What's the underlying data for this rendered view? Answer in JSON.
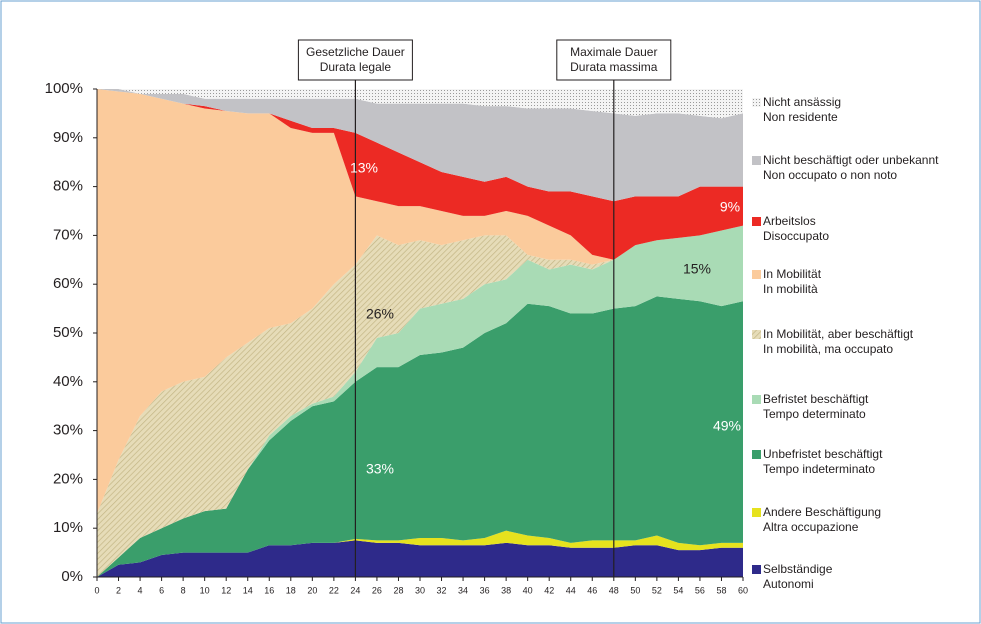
{
  "chart_data": {
    "type": "stacked-area",
    "x": [
      0,
      2,
      4,
      6,
      8,
      10,
      12,
      14,
      16,
      18,
      20,
      22,
      24,
      26,
      28,
      30,
      32,
      34,
      36,
      38,
      40,
      42,
      44,
      46,
      48,
      50,
      52,
      54,
      56,
      58,
      60
    ],
    "xlim": [
      0,
      60
    ],
    "xticks": [
      0,
      2,
      4,
      6,
      8,
      10,
      12,
      14,
      16,
      18,
      20,
      22,
      24,
      26,
      28,
      30,
      32,
      34,
      36,
      38,
      40,
      42,
      44,
      46,
      48,
      50,
      52,
      54,
      56,
      58,
      60
    ],
    "ylim": [
      0,
      100
    ],
    "yticks": [
      {
        "value": 0,
        "label": "0%"
      },
      {
        "value": 10,
        "label": "10%"
      },
      {
        "value": 20,
        "label": "20%"
      },
      {
        "value": 30,
        "label": "30%"
      },
      {
        "value": 40,
        "label": "40%"
      },
      {
        "value": 50,
        "label": "50%"
      },
      {
        "value": 60,
        "label": "60%"
      },
      {
        "value": 70,
        "label": "70%"
      },
      {
        "value": 80,
        "label": "80%"
      },
      {
        "value": 90,
        "label": "90%"
      },
      {
        "value": 100,
        "label": "100%"
      }
    ],
    "series": [
      {
        "name": [
          "Selbständige",
          "Autonomi"
        ],
        "color": "#2e2a8a",
        "values": [
          0,
          2.5,
          3,
          4.5,
          5,
          5,
          5,
          5,
          6.5,
          6.5,
          7,
          7,
          7.5,
          7,
          7,
          6.5,
          6.5,
          6.5,
          6.5,
          7,
          6.5,
          6.5,
          6,
          6,
          6,
          6.5,
          6.5,
          5.5,
          5.5,
          6,
          6
        ]
      },
      {
        "name": [
          "Andere Beschäftigung",
          "Altra occupazione"
        ],
        "color": "#e6e21e",
        "values": [
          0,
          0,
          0,
          0,
          0,
          0,
          0,
          0,
          0,
          0,
          0,
          0,
          0.3,
          0.5,
          0.5,
          1.5,
          1.5,
          1,
          1.5,
          2.5,
          2,
          1.5,
          1,
          1.5,
          1.5,
          1,
          2,
          1.5,
          1,
          1,
          1
        ]
      },
      {
        "name": [
          "Unbefristet beschäftigt",
          "Tempo indeterminato"
        ],
        "color": "#3a9e6b",
        "values": [
          0,
          1.5,
          5,
          5.5,
          7,
          8.5,
          9,
          17,
          21.5,
          25.5,
          28,
          29,
          32.2,
          35.5,
          35.5,
          37.5,
          38,
          39.5,
          42,
          42.5,
          47.5,
          47.5,
          47,
          46.5,
          47.5,
          48,
          49,
          50,
          50,
          48.5,
          49.5
        ]
      },
      {
        "name": [
          "Befristet beschäftigt",
          "Tempo determinato"
        ],
        "color": "#a9dbb5",
        "values": [
          0,
          0,
          0,
          0,
          0,
          0,
          0,
          0,
          1,
          1,
          0.5,
          1,
          2,
          6,
          7,
          9.5,
          10,
          10,
          10,
          9,
          9,
          7.5,
          10,
          9,
          10,
          12.5,
          11.5,
          12.5,
          13.5,
          15.5,
          15.5
        ]
      },
      {
        "name": [
          "In Mobilität, aber beschäftigt",
          "In mobilità, ma occupato"
        ],
        "color": "#d8cea4",
        "pattern": "hatch",
        "values": [
          13,
          20,
          25,
          28,
          28,
          27.5,
          31,
          26,
          22,
          19,
          19.5,
          23,
          22,
          21,
          18,
          14,
          12,
          12,
          10,
          9,
          1,
          2,
          1,
          1,
          0,
          0,
          0,
          0,
          0,
          0,
          0
        ]
      },
      {
        "name": [
          "In Mobilität",
          "In mobilità"
        ],
        "color": "#fbcb9c",
        "values": [
          87,
          75.5,
          66,
          60,
          57,
          55,
          50.5,
          47,
          44,
          40,
          36,
          31,
          14,
          7,
          8,
          7,
          7,
          5,
          4,
          5,
          8,
          7,
          5,
          2,
          0,
          0,
          0,
          0,
          0,
          0,
          0
        ]
      },
      {
        "name": [
          "Arbeitslos",
          "Disoccupato"
        ],
        "color": "#ec2a24",
        "values": [
          0,
          0,
          0,
          0,
          0,
          0.5,
          0,
          0,
          0,
          1.5,
          1,
          1,
          13,
          12,
          11,
          9,
          8,
          8,
          7,
          7,
          6,
          7,
          9,
          12,
          12,
          10,
          9,
          8.5,
          10,
          9,
          8
        ]
      },
      {
        "name": [
          "Nicht beschäftigt oder unbekannt",
          "Non occupato o non noto"
        ],
        "color": "#c2c2c6",
        "values": [
          0,
          0.5,
          0,
          1,
          2,
          1.5,
          2.5,
          3,
          3,
          4.5,
          6,
          6,
          7,
          8,
          10,
          12,
          14,
          15,
          15.5,
          14.5,
          16,
          17,
          17,
          17.5,
          18,
          16.5,
          17,
          17,
          14.5,
          14,
          15
        ]
      },
      {
        "name": [
          "Nicht ansässig",
          "Non residente"
        ],
        "color": "#e4e4e4",
        "pattern": "dots",
        "values": [
          0,
          0,
          1,
          1,
          1,
          2,
          2,
          2,
          2,
          2,
          2,
          2,
          2,
          3,
          3,
          3,
          3,
          3,
          3.5,
          3.5,
          4,
          4,
          4,
          4.5,
          5,
          5.5,
          5,
          5,
          5.5,
          6,
          5
        ]
      }
    ],
    "annotations": [
      "13%",
      "26%",
      "33%",
      "15%",
      "9%",
      "49%"
    ],
    "vlines": [
      {
        "x": 24,
        "label": [
          "Gesetzliche Dauer",
          "Durata legale"
        ]
      },
      {
        "x": 48,
        "label": [
          "Maximale Dauer",
          "Durata massima"
        ]
      }
    ]
  }
}
